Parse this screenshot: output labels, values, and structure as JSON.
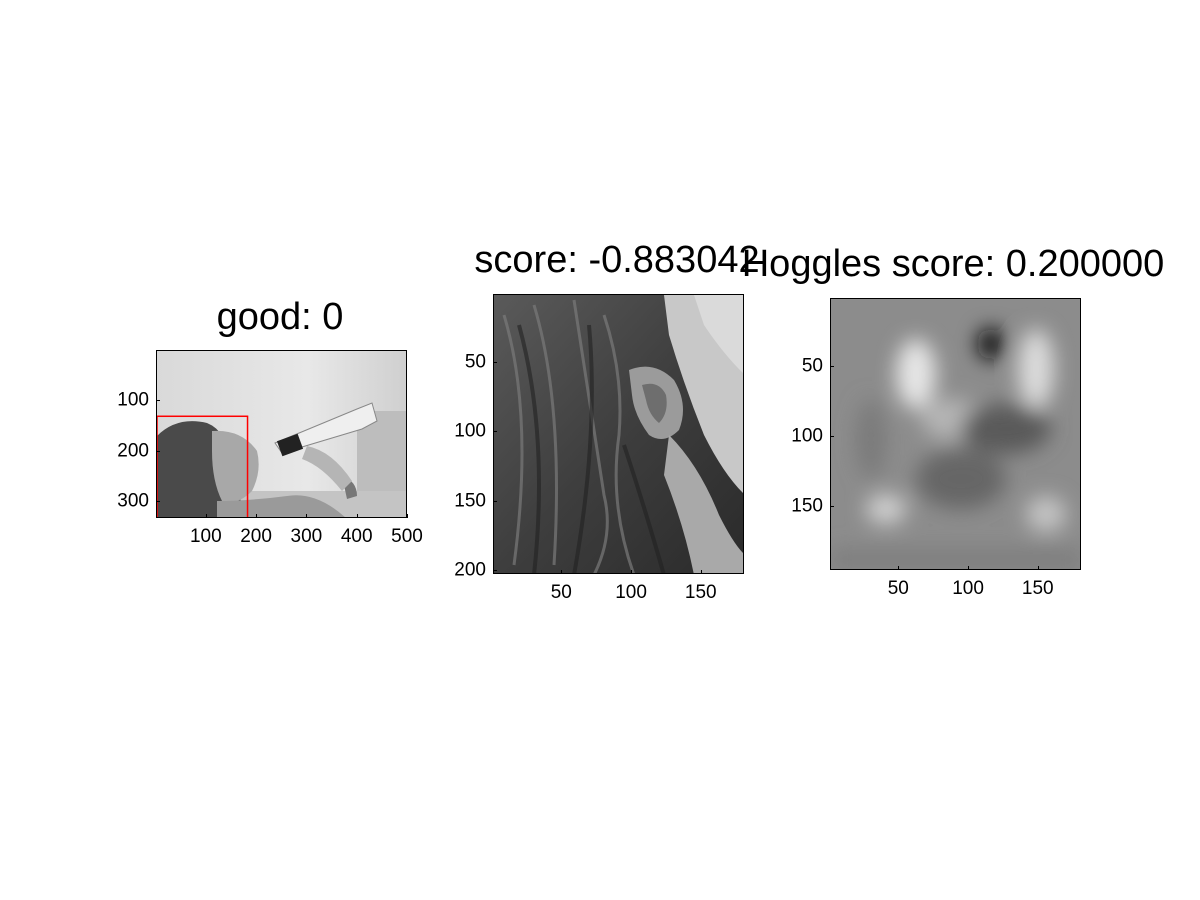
{
  "chart_data": [
    {
      "type": "image",
      "title": "good: 0",
      "xticks": [
        100,
        200,
        300,
        400,
        500
      ],
      "yticks": [
        100,
        200,
        300
      ],
      "xlim": [
        1,
        500
      ],
      "ylim": [
        1,
        333
      ],
      "image_description": "grayscale photo of a woman drinking from a bottle",
      "box": {
        "x0": 1,
        "y0": 130,
        "x1": 181,
        "y1": 333,
        "color": "#ff0000"
      }
    },
    {
      "type": "image",
      "title": "score: -0.883042",
      "xticks": [
        50,
        100,
        150
      ],
      "yticks": [
        50,
        100,
        150,
        200
      ],
      "xlim": [
        1,
        181
      ],
      "ylim": [
        1,
        203
      ],
      "image_description": "cropped grayscale close-up of hair and ear"
    },
    {
      "type": "heatmap",
      "title": "Hoggles score: 0.200000",
      "xticks": [
        50,
        100,
        150
      ],
      "yticks": [
        50,
        100,
        150
      ],
      "xlim": [
        1,
        181
      ],
      "ylim": [
        1,
        196
      ],
      "image_description": "blurry grayscale HOG inversion visualization"
    }
  ]
}
